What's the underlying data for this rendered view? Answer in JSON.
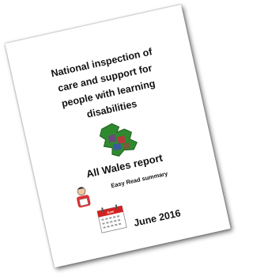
{
  "cover": {
    "title_lines": [
      "National inspection of",
      "care and support for",
      "people with learning",
      "disabilities"
    ],
    "report": "All Wales report",
    "subtitle": "Easy Read summary",
    "calendar": "June",
    "date": "June 2016"
  }
}
